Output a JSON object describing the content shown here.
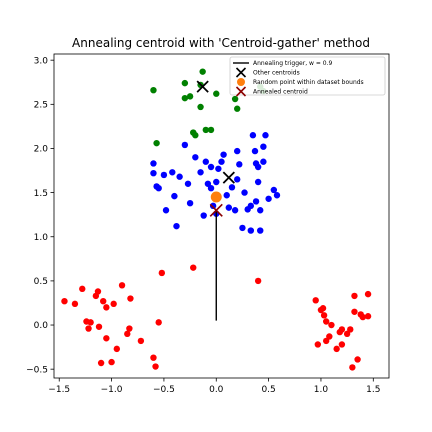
{
  "chart_data": {
    "type": "scatter",
    "title": "Annealing centroid with 'Centroid-gather' method",
    "xlabel": "",
    "ylabel": "",
    "xlim": [
      -1.55,
      1.65
    ],
    "ylim": [
      -0.6,
      3.07
    ],
    "xticks": [
      -1.5,
      -1.0,
      -0.5,
      0.0,
      0.5,
      1.0,
      1.5
    ],
    "yticks": [
      -0.5,
      0.0,
      0.5,
      1.0,
      1.5,
      2.0,
      2.5,
      3.0
    ],
    "xtick_labels": [
      "−1.5",
      "−1.0",
      "−0.5",
      "0.0",
      "0.5",
      "1.0",
      "1.5"
    ],
    "ytick_labels": [
      "−0.5",
      "0.0",
      "0.5",
      "1.0",
      "1.5",
      "2.0",
      "2.5",
      "3.0"
    ],
    "grid": false,
    "legend_position": "top-right",
    "legend": [
      {
        "label": "Annealing trigger, w = 0.9",
        "marker": "line",
        "color": "#000000"
      },
      {
        "label": "Other centroids",
        "marker": "x",
        "color": "#000000"
      },
      {
        "label": "Random point within dataset bounds",
        "marker": "circle",
        "color": "#ff7f0e"
      },
      {
        "label": "Annealed centroid",
        "marker": "x",
        "color": "#8b0000"
      }
    ],
    "series": [
      {
        "color": "#ff0000",
        "points": [
          [
            -1.45,
            0.27
          ],
          [
            -1.35,
            0.24
          ],
          [
            -1.28,
            0.41
          ],
          [
            -1.24,
            0.04
          ],
          [
            -1.22,
            -0.04
          ],
          [
            -1.2,
            0.03
          ],
          [
            -1.15,
            0.33
          ],
          [
            -1.13,
            0.38
          ],
          [
            -1.12,
            -0.02
          ],
          [
            -1.08,
            0.27
          ],
          [
            -1.1,
            -0.43
          ],
          [
            -1.05,
            0.2
          ],
          [
            -1.05,
            -0.15
          ],
          [
            -1.0,
            -0.42
          ],
          [
            -0.98,
            0.24
          ],
          [
            -0.95,
            -0.27
          ],
          [
            -0.9,
            0.45
          ],
          [
            -0.85,
            -0.1
          ],
          [
            -0.83,
            -0.04
          ],
          [
            -0.82,
            0.3
          ],
          [
            -0.72,
            -0.18
          ],
          [
            -0.6,
            -0.37
          ],
          [
            -0.58,
            -0.47
          ],
          [
            -0.55,
            0.03
          ],
          [
            -0.52,
            0.59
          ],
          [
            -0.22,
            0.65
          ],
          [
            0.4,
            0.5
          ],
          [
            0.95,
            0.28
          ],
          [
            0.97,
            -0.22
          ],
          [
            1.0,
            0.17
          ],
          [
            1.02,
            0.19
          ],
          [
            1.03,
            0.11
          ],
          [
            1.05,
            0.04
          ],
          [
            1.05,
            -0.18
          ],
          [
            1.08,
            -0.13
          ],
          [
            1.1,
            0.0
          ],
          [
            1.15,
            -0.27
          ],
          [
            1.18,
            -0.08
          ],
          [
            1.2,
            -0.05
          ],
          [
            1.2,
            -0.22
          ],
          [
            1.25,
            -0.1
          ],
          [
            1.28,
            -0.05
          ],
          [
            1.3,
            -0.48
          ],
          [
            1.32,
            0.33
          ],
          [
            1.32,
            0.15
          ],
          [
            1.35,
            -0.39
          ],
          [
            1.38,
            0.12
          ],
          [
            1.4,
            0.09
          ],
          [
            1.45,
            0.35
          ],
          [
            1.45,
            0.1
          ]
        ]
      },
      {
        "color": "#008000",
        "points": [
          [
            -0.6,
            2.66
          ],
          [
            -0.57,
            2.06
          ],
          [
            -0.3,
            2.74
          ],
          [
            -0.3,
            2.57
          ],
          [
            -0.25,
            2.59
          ],
          [
            -0.22,
            2.18
          ],
          [
            -0.2,
            2.15
          ],
          [
            -0.15,
            2.47
          ],
          [
            -0.15,
            2.72
          ],
          [
            -0.13,
            2.87
          ],
          [
            -0.1,
            2.21
          ],
          [
            -0.05,
            2.21
          ],
          [
            0.0,
            2.62
          ],
          [
            0.18,
            2.56
          ],
          [
            0.2,
            2.45
          ],
          [
            0.42,
            2.7
          ],
          [
            0.45,
            2.65
          ]
        ]
      },
      {
        "color": "#0000ff",
        "points": [
          [
            -0.6,
            1.83
          ],
          [
            -0.6,
            1.72
          ],
          [
            -0.57,
            1.57
          ],
          [
            -0.55,
            1.55
          ],
          [
            -0.5,
            1.7
          ],
          [
            -0.48,
            1.3
          ],
          [
            -0.42,
            1.73
          ],
          [
            -0.4,
            1.46
          ],
          [
            -0.38,
            1.12
          ],
          [
            -0.35,
            1.68
          ],
          [
            -0.3,
            2.04
          ],
          [
            -0.27,
            1.6
          ],
          [
            -0.25,
            1.38
          ],
          [
            -0.2,
            1.9
          ],
          [
            -0.15,
            1.73
          ],
          [
            -0.12,
            1.24
          ],
          [
            -0.1,
            1.85
          ],
          [
            -0.08,
            1.6
          ],
          [
            -0.05,
            1.79
          ],
          [
            -0.05,
            1.55
          ],
          [
            -0.03,
            1.35
          ],
          [
            0.0,
            1.62
          ],
          [
            0.0,
            1.26
          ],
          [
            0.02,
            1.77
          ],
          [
            0.05,
            1.85
          ],
          [
            0.07,
            1.93
          ],
          [
            0.1,
            1.47
          ],
          [
            0.12,
            1.33
          ],
          [
            0.15,
            1.56
          ],
          [
            0.18,
            1.3
          ],
          [
            0.2,
            1.65
          ],
          [
            0.2,
            1.97
          ],
          [
            0.22,
            1.82
          ],
          [
            0.25,
            1.1
          ],
          [
            0.27,
            1.5
          ],
          [
            0.3,
            1.31
          ],
          [
            0.33,
            1.07
          ],
          [
            0.33,
            1.35
          ],
          [
            0.35,
            2.15
          ],
          [
            0.37,
            1.97
          ],
          [
            0.38,
            1.83
          ],
          [
            0.38,
            1.4
          ],
          [
            0.4,
            1.79
          ],
          [
            0.4,
            1.62
          ],
          [
            0.42,
            1.07
          ],
          [
            0.42,
            1.3
          ],
          [
            0.45,
            1.85
          ],
          [
            0.45,
            2.02
          ],
          [
            0.47,
            2.15
          ],
          [
            0.5,
            1.43
          ],
          [
            0.55,
            1.53
          ],
          [
            0.58,
            1.47
          ]
        ]
      }
    ],
    "other_centroids": [
      [
        -0.13,
        2.7
      ],
      [
        0.12,
        1.67
      ]
    ],
    "random_point": [
      0.0,
      1.45
    ],
    "annealed_centroid": [
      0.0,
      1.3
    ],
    "trigger_line": [
      [
        0.0,
        0.05
      ],
      [
        0.0,
        1.3
      ]
    ]
  }
}
